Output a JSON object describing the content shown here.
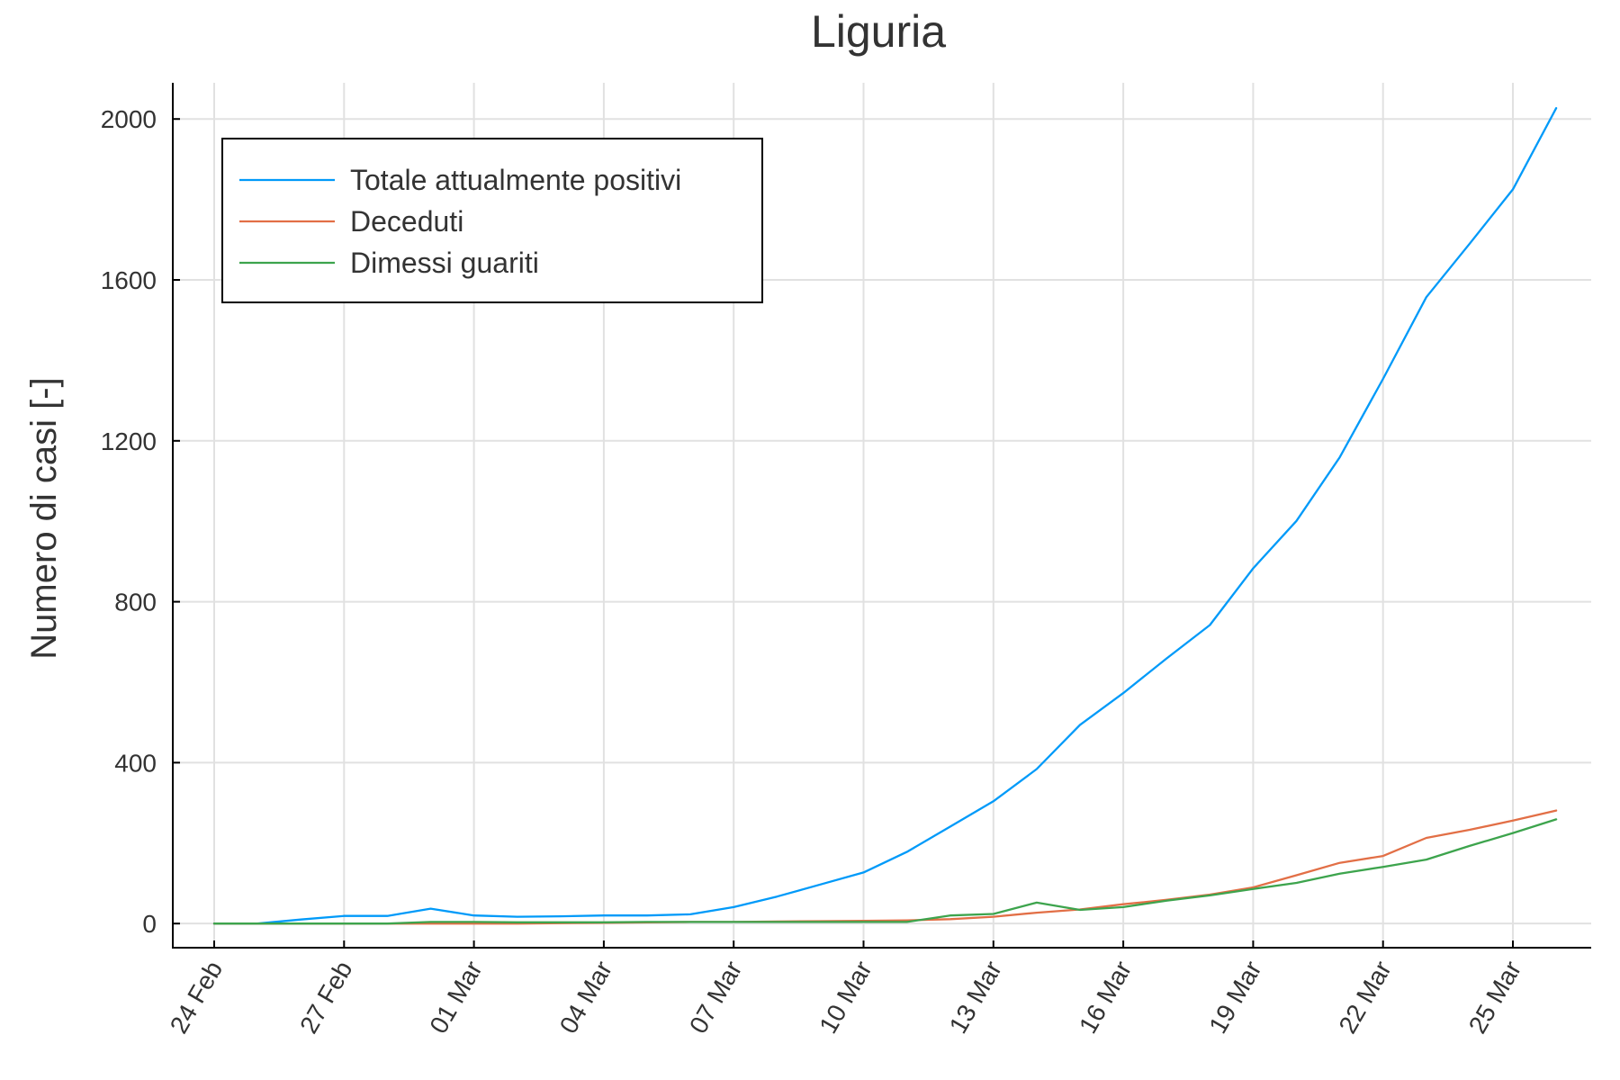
{
  "chart_data": {
    "type": "line",
    "title": "Liguria",
    "xlabel": "",
    "ylabel": "Numero di casi [-]",
    "x": [
      "24 Feb",
      "25 Feb",
      "26 Feb",
      "27 Feb",
      "28 Feb",
      "29 Feb",
      "01 Mar",
      "02 Mar",
      "03 Mar",
      "04 Mar",
      "05 Mar",
      "06 Mar",
      "07 Mar",
      "08 Mar",
      "09 Mar",
      "10 Mar",
      "11 Mar",
      "12 Mar",
      "13 Mar",
      "14 Mar",
      "15 Mar",
      "16 Mar",
      "17 Mar",
      "18 Mar",
      "19 Mar",
      "20 Mar",
      "21 Mar",
      "22 Mar",
      "23 Mar",
      "24 Mar",
      "25 Mar",
      "26 Mar"
    ],
    "x_tick_labels": [
      "24 Feb",
      "27 Feb",
      "01 Mar",
      "04 Mar",
      "07 Mar",
      "10 Mar",
      "13 Mar",
      "16 Mar",
      "19 Mar",
      "22 Mar",
      "25 Mar"
    ],
    "y_ticks": [
      0,
      400,
      800,
      1200,
      1600,
      2000
    ],
    "ylim": [
      -60,
      2090
    ],
    "grid": true,
    "legend_position": "top-left",
    "series": [
      {
        "name": "Totale attualmente positivi",
        "color": "#009af9",
        "values": [
          0,
          0,
          10,
          19,
          19,
          37,
          20,
          17,
          18,
          20,
          20,
          23,
          41,
          67,
          97,
          127,
          178,
          241,
          304,
          384,
          494,
          573,
          659,
          742,
          883,
          1001,
          1159,
          1354,
          1557,
          1690,
          1825,
          2027
        ]
      },
      {
        "name": "Deceduti",
        "color": "#e26f46",
        "values": [
          0,
          0,
          0,
          0,
          0,
          0,
          0,
          0,
          1,
          2,
          3,
          4,
          4,
          5,
          6,
          7,
          8,
          11,
          17,
          27,
          35,
          48,
          59,
          72,
          90,
          120,
          151,
          168,
          213,
          233,
          256,
          281
        ]
      },
      {
        "name": "Dimessi guariti",
        "color": "#3da44d",
        "values": [
          0,
          0,
          0,
          0,
          0,
          4,
          4,
          3,
          3,
          3,
          4,
          4,
          4,
          4,
          4,
          4,
          4,
          20,
          24,
          52,
          34,
          41,
          57,
          70,
          86,
          101,
          124,
          141,
          159,
          193,
          225,
          259
        ]
      }
    ]
  }
}
